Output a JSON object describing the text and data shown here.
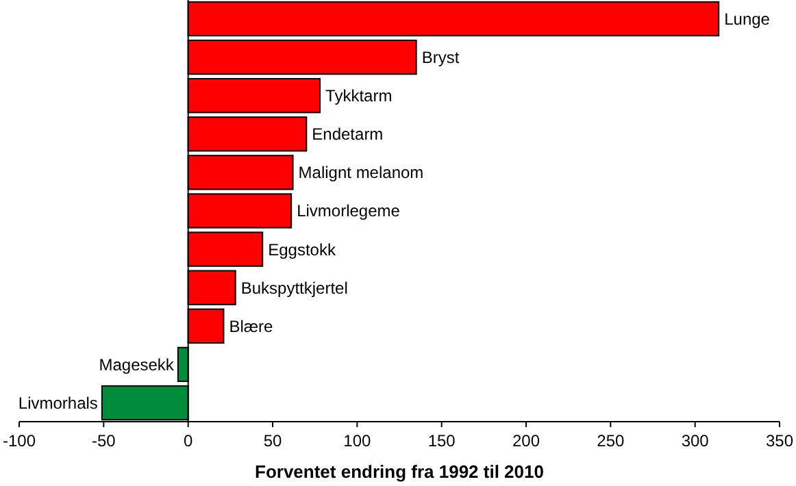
{
  "chart_data": {
    "type": "bar",
    "orientation": "horizontal",
    "xlabel": "Forventet endring fra 1992 til 2010",
    "categories": [
      "Lunge",
      "Bryst",
      "Tykktarm",
      "Endetarm",
      "Malignt melanom",
      "Livmorlegeme",
      "Eggstokk",
      "Bukspyttkjertel",
      "Blære",
      "Magesekk",
      "Livmorhals"
    ],
    "values": [
      314,
      135,
      78,
      70,
      62,
      61,
      44,
      28,
      21,
      -6,
      -51
    ],
    "colors": [
      "#ff0000",
      "#ff0000",
      "#ff0000",
      "#ff0000",
      "#ff0000",
      "#ff0000",
      "#ff0000",
      "#ff0000",
      "#ff0000",
      "#008c3a",
      "#008c3a"
    ],
    "xlim": [
      -100,
      350
    ],
    "xticks": [
      -100,
      -50,
      0,
      50,
      100,
      150,
      200,
      250,
      300,
      350
    ]
  }
}
